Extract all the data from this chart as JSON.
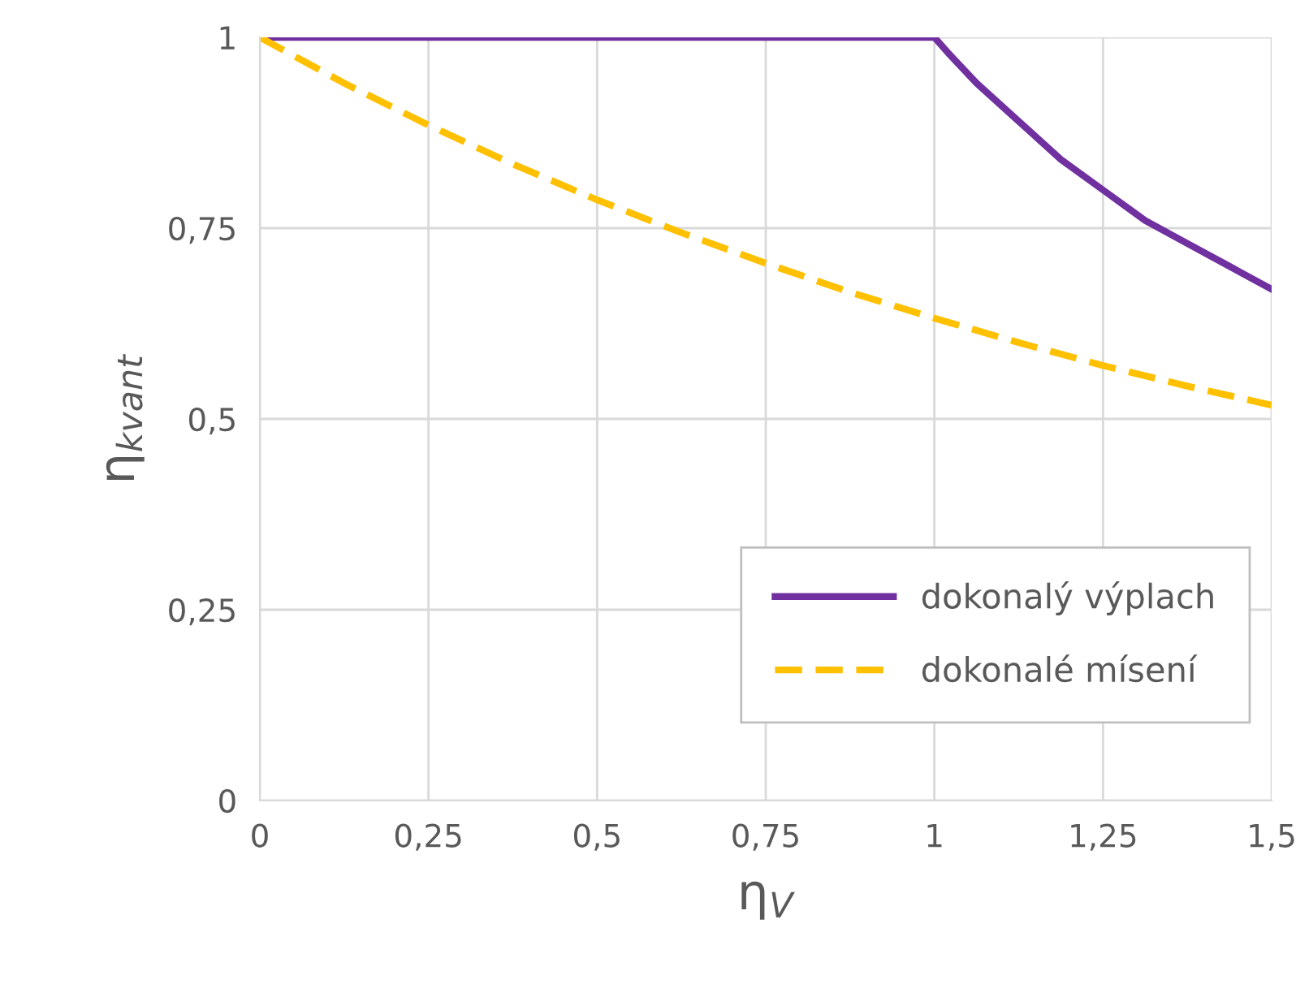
{
  "chart_data": {
    "type": "line",
    "xlabel": "η$_{V}$",
    "ylabel": "η$_{kvant}$",
    "xlim": [
      0,
      1.5
    ],
    "ylim": [
      0,
      1
    ],
    "xticks": [
      0,
      {
        "value": 0.25,
        "label": "0,25"
      },
      {
        "value": 0.5,
        "label": "0,5"
      },
      {
        "value": 0.75,
        "label": "0,75"
      },
      1,
      {
        "value": 1.25,
        "label": "1,25"
      },
      {
        "value": 1.5,
        "label": "1,5"
      }
    ],
    "yticks": [
      0,
      {
        "value": 0.25,
        "label": "0,25"
      },
      {
        "value": 0.5,
        "label": "0,5"
      },
      {
        "value": 0.75,
        "label": "0,75"
      },
      1
    ],
    "grid": true,
    "legend": "bottom right",
    "series": [
      {
        "name": "dokonalý výplach",
        "color": "#7030a0",
        "line_style": "solid",
        "x": [
          0,
          0.5,
          0.98,
          1.0,
          1.02,
          1.0625,
          1.125,
          1.1875,
          1.25,
          1.3125,
          1.375,
          1.4375,
          1.5
        ],
        "values": [
          1,
          1,
          1,
          1,
          0.98,
          0.94,
          0.89,
          0.84,
          0.8,
          0.76,
          0.73,
          0.7,
          0.67
        ]
      },
      {
        "name": "dokonalé mísení",
        "color": "#ffc000",
        "line_style": "dashed",
        "x": [
          0,
          0.125,
          0.25,
          0.375,
          0.5,
          0.625,
          0.75,
          0.875,
          1,
          1.125,
          1.25,
          1.375,
          1.5
        ],
        "values": [
          1,
          0.94,
          0.885,
          0.834,
          0.787,
          0.744,
          0.704,
          0.666,
          0.632,
          0.6,
          0.57,
          0.543,
          0.518
        ]
      }
    ]
  }
}
